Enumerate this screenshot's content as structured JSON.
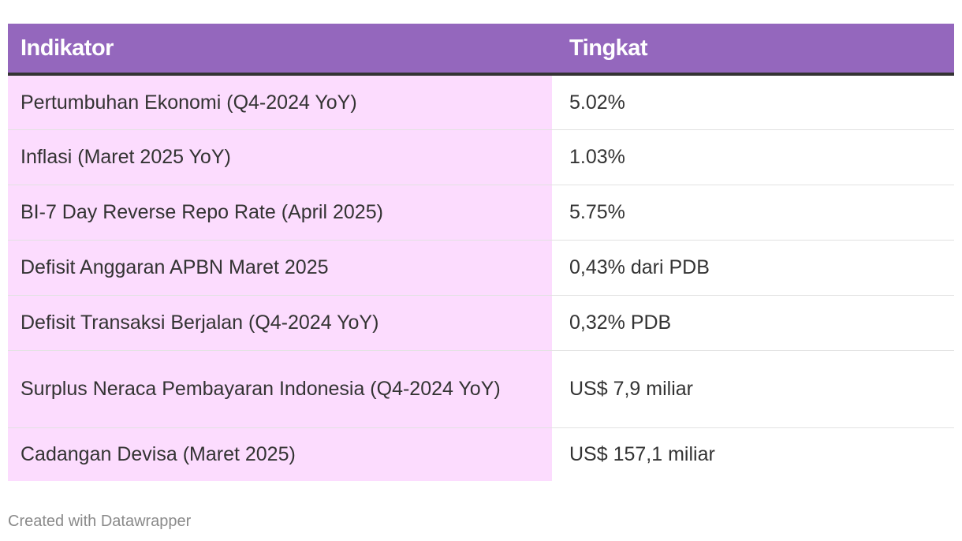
{
  "chart_data": {
    "type": "table",
    "columns": [
      "Indikator",
      "Tingkat"
    ],
    "rows": [
      {
        "indikator": "Pertumbuhan Ekonomi (Q4-2024 YoY)",
        "tingkat": "5.02%"
      },
      {
        "indikator": "Inflasi (Maret 2025 YoY)",
        "tingkat": "1.03%"
      },
      {
        "indikator": "BI-7 Day Reverse Repo Rate (April 2025)",
        "tingkat": "5.75%"
      },
      {
        "indikator": "Defisit Anggaran APBN Maret 2025",
        "tingkat": "0,43% dari PDB"
      },
      {
        "indikator": "Defisit Transaksi Berjalan (Q4-2024 YoY)",
        "tingkat": "0,32% PDB"
      },
      {
        "indikator": "Surplus Neraca Pembayaran Indonesia (Q4-2024 YoY)",
        "tingkat": "US$ 7,9 miliar"
      },
      {
        "indikator": "Cadangan Devisa (Maret 2025)",
        "tingkat": "US$ 157,1 miliar"
      }
    ]
  },
  "colors": {
    "header_bg": "#9467bd",
    "header_text": "#ffffff",
    "first_column_bg": "#fcdcfe",
    "header_rule": "#333333"
  },
  "footer": {
    "credit": "Created with Datawrapper"
  }
}
